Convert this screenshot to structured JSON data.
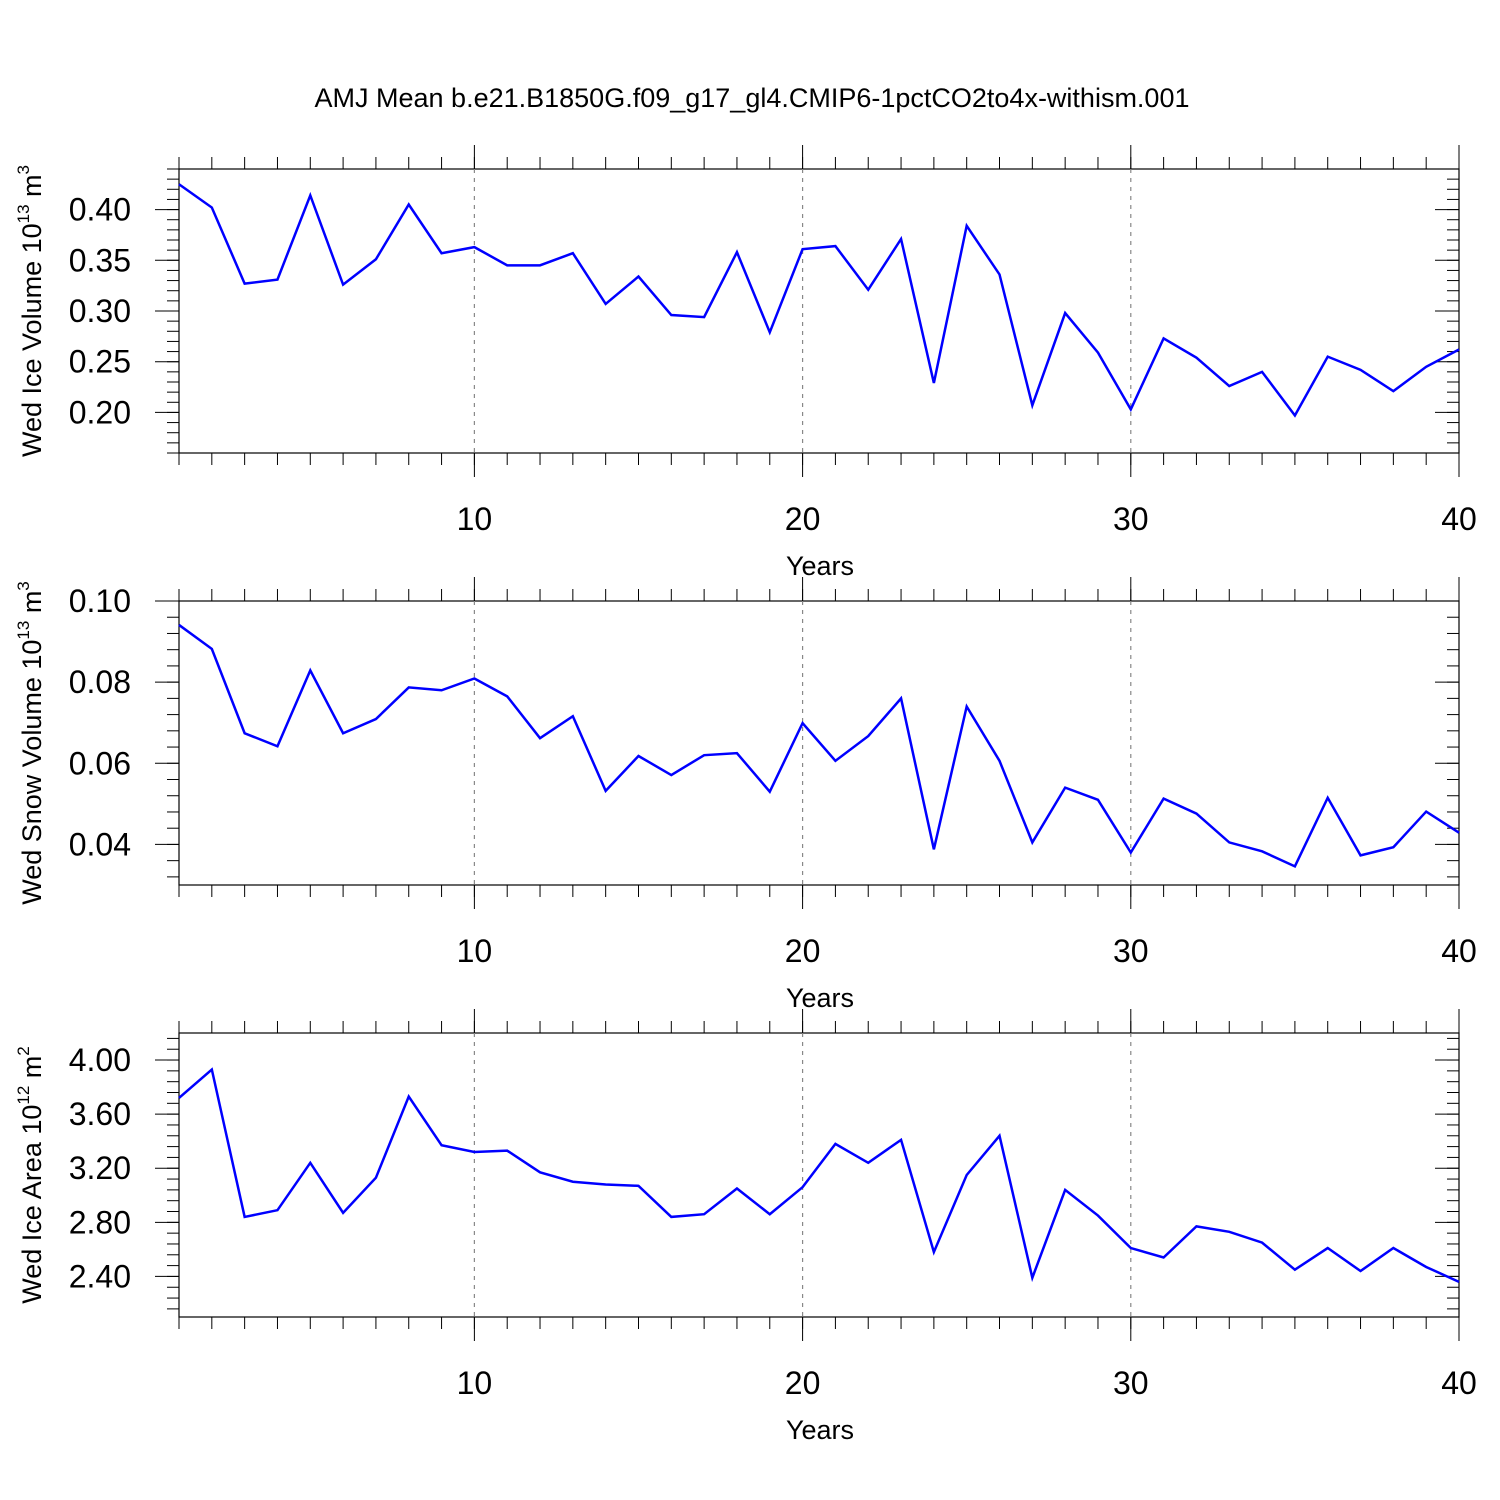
{
  "title": "AMJ Mean b.e21.B1850G.f09_g17_gl4.CMIP6-1pctCO2to4x-withism.001",
  "chart_data": [
    {
      "type": "line",
      "ylabel": [
        "Wed Ice Volume 10",
        "13",
        " m",
        "3"
      ],
      "xlabel": "Years",
      "color": "#0000ff",
      "grid": true,
      "x": [
        1,
        2,
        3,
        4,
        5,
        6,
        7,
        8,
        9,
        10,
        11,
        12,
        13,
        14,
        15,
        16,
        17,
        18,
        19,
        20,
        21,
        22,
        23,
        24,
        25,
        26,
        27,
        28,
        29,
        30,
        31,
        32,
        33,
        34,
        35,
        36,
        37,
        38,
        39,
        40
      ],
      "values": [
        0.425,
        0.402,
        0.327,
        0.331,
        0.414,
        0.326,
        0.351,
        0.405,
        0.357,
        0.363,
        0.345,
        0.345,
        0.357,
        0.307,
        0.334,
        0.296,
        0.294,
        0.358,
        0.279,
        0.361,
        0.364,
        0.321,
        0.371,
        0.229,
        0.384,
        0.336,
        0.207,
        0.298,
        0.259,
        0.203,
        0.273,
        0.254,
        0.226,
        0.24,
        0.197,
        0.255,
        0.242,
        0.221,
        0.245,
        0.262
      ],
      "xlim": [
        1,
        40
      ],
      "xticks": [
        10,
        20,
        30,
        40
      ],
      "ylim": [
        0.16,
        0.44
      ],
      "yticks": [
        {
          "value": 0.2,
          "label": "0.20"
        },
        {
          "value": 0.25,
          "label": "0.25"
        },
        {
          "value": 0.3,
          "label": "0.30"
        },
        {
          "value": 0.35,
          "label": "0.35"
        },
        {
          "value": 0.4,
          "label": "0.40"
        }
      ]
    },
    {
      "type": "line",
      "ylabel": [
        "Wed Snow Volume 10",
        "13",
        " m",
        "3"
      ],
      "xlabel": "Years",
      "color": "#0000ff",
      "grid": true,
      "x": [
        1,
        2,
        3,
        4,
        5,
        6,
        7,
        8,
        9,
        10,
        11,
        12,
        13,
        14,
        15,
        16,
        17,
        18,
        19,
        20,
        21,
        22,
        23,
        24,
        25,
        26,
        27,
        28,
        29,
        30,
        31,
        32,
        33,
        34,
        35,
        36,
        37,
        38,
        39,
        40
      ],
      "values": [
        0.0941,
        0.0882,
        0.0674,
        0.0642,
        0.0829,
        0.0674,
        0.0709,
        0.0787,
        0.078,
        0.0809,
        0.0765,
        0.0662,
        0.0716,
        0.0532,
        0.0618,
        0.0571,
        0.062,
        0.0625,
        0.053,
        0.0699,
        0.0606,
        0.0667,
        0.076,
        0.0388,
        0.074,
        0.0606,
        0.0405,
        0.054,
        0.051,
        0.038,
        0.0513,
        0.0476,
        0.0405,
        0.0383,
        0.0346,
        0.0515,
        0.0373,
        0.0393,
        0.0481,
        0.0429
      ],
      "xlim": [
        1,
        40
      ],
      "xticks": [
        10,
        20,
        30,
        40
      ],
      "ylim": [
        0.03,
        0.1
      ],
      "yticks": [
        {
          "value": 0.04,
          "label": "0.04"
        },
        {
          "value": 0.06,
          "label": "0.06"
        },
        {
          "value": 0.08,
          "label": "0.08"
        },
        {
          "value": 0.1,
          "label": "0.10"
        }
      ]
    },
    {
      "type": "line",
      "ylabel": [
        "Wed Ice Area 10",
        "12",
        " m",
        "2"
      ],
      "xlabel": "Years",
      "color": "#0000ff",
      "grid": true,
      "x": [
        1,
        2,
        3,
        4,
        5,
        6,
        7,
        8,
        9,
        10,
        11,
        12,
        13,
        14,
        15,
        16,
        17,
        18,
        19,
        20,
        21,
        22,
        23,
        24,
        25,
        26,
        27,
        28,
        29,
        30,
        31,
        32,
        33,
        34,
        35,
        36,
        37,
        38,
        39,
        40
      ],
      "values": [
        3.72,
        3.93,
        2.84,
        2.89,
        3.24,
        2.87,
        3.13,
        3.73,
        3.37,
        3.32,
        3.33,
        3.17,
        3.1,
        3.08,
        3.07,
        2.84,
        2.86,
        3.05,
        2.86,
        3.06,
        3.38,
        3.24,
        3.41,
        2.58,
        3.15,
        3.44,
        2.39,
        3.04,
        2.85,
        2.61,
        2.54,
        2.77,
        2.73,
        2.65,
        2.45,
        2.61,
        2.44,
        2.61,
        2.47,
        2.36
      ],
      "xlim": [
        1,
        40
      ],
      "xticks": [
        10,
        20,
        30,
        40
      ],
      "ylim": [
        2.1,
        4.2
      ],
      "yticks": [
        {
          "value": 2.4,
          "label": "2.40"
        },
        {
          "value": 2.8,
          "label": "2.80"
        },
        {
          "value": 3.2,
          "label": "3.20"
        },
        {
          "value": 3.6,
          "label": "3.60"
        },
        {
          "value": 4.0,
          "label": "4.00"
        }
      ]
    }
  ]
}
